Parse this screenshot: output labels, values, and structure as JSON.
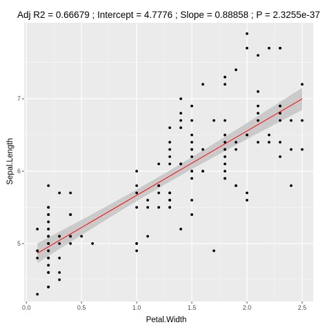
{
  "chart_data": {
    "type": "scatter",
    "title": "Adj R2 =  0.66679 ; Intercept = 4.7776 ; Slope = 0.88858 ; P = 2.3255e-37",
    "xlabel": "Petal.Width",
    "ylabel": "Sepal.Length",
    "xlim": [
      -0.02,
      2.6
    ],
    "ylim": [
      4.2,
      8.05
    ],
    "xticks": [
      0.0,
      0.5,
      1.0,
      1.5,
      2.0,
      2.5
    ],
    "xtick_labels": [
      "0.0",
      "0.5",
      "1.0",
      "1.5",
      "2.0",
      "2.5"
    ],
    "yticks": [
      5,
      6,
      7
    ],
    "ytick_labels": [
      "5",
      "6",
      "7"
    ],
    "grid": true,
    "background": "#ebebeb",
    "grid_color": "#ffffff",
    "point_color": "#000000",
    "fit": {
      "intercept": 4.7776,
      "slope": 0.88858,
      "color": "#ff0000",
      "ci_color": "#bfbfbf"
    },
    "series": [
      {
        "x": [
          0.2,
          0.2,
          0.2,
          0.2,
          0.2,
          0.4,
          0.3,
          0.2,
          0.2,
          0.1,
          0.2,
          0.2,
          0.1,
          0.1,
          0.2,
          0.4,
          0.4,
          0.3,
          0.3,
          0.3,
          0.2,
          0.4,
          0.2,
          0.5,
          0.2,
          0.2,
          0.4,
          0.2,
          0.2,
          0.2,
          0.2,
          0.4,
          0.1,
          0.2,
          0.2,
          0.2,
          0.2,
          0.1,
          0.2,
          0.2,
          0.3,
          0.3,
          0.2,
          0.6,
          0.4,
          0.3,
          0.2,
          0.2,
          0.2,
          0.2,
          1.4,
          1.5,
          1.5,
          1.3,
          1.5,
          1.3,
          1.6,
          1.0,
          1.3,
          1.4,
          1.0,
          1.5,
          1.0,
          1.4,
          1.3,
          1.4,
          1.5,
          1.0,
          1.5,
          1.1,
          1.8,
          1.3,
          1.5,
          1.2,
          1.3,
          1.4,
          1.4,
          1.7,
          1.5,
          1.0,
          1.1,
          1.0,
          1.2,
          1.6,
          1.5,
          1.6,
          1.5,
          1.3,
          1.3,
          1.3,
          1.2,
          1.4,
          1.2,
          1.0,
          1.3,
          1.2,
          1.3,
          1.3,
          1.1,
          1.3,
          2.5,
          1.9,
          2.1,
          1.8,
          2.2,
          2.1,
          1.7,
          1.8,
          1.8,
          2.5,
          2.0,
          1.9,
          2.1,
          2.0,
          2.4,
          2.3,
          1.8,
          2.2,
          2.3,
          1.5,
          2.3,
          2.0,
          2.0,
          1.8,
          2.1,
          1.8,
          1.8,
          1.8,
          2.1,
          1.6,
          1.9,
          2.0,
          2.2,
          1.5,
          1.4,
          2.3,
          2.4,
          1.8,
          1.8,
          2.1,
          2.4,
          2.3,
          1.9,
          2.3,
          2.5,
          2.3,
          1.9,
          2.0,
          2.3,
          1.8
        ],
        "y": [
          5.1,
          4.9,
          4.7,
          4.6,
          5.0,
          5.4,
          4.6,
          5.0,
          4.4,
          4.9,
          5.4,
          4.8,
          4.8,
          4.3,
          5.8,
          5.7,
          5.4,
          5.1,
          5.7,
          5.1,
          5.4,
          5.1,
          4.6,
          5.1,
          4.8,
          5.0,
          5.0,
          5.2,
          5.2,
          4.7,
          4.8,
          5.4,
          5.2,
          5.5,
          4.9,
          5.0,
          5.5,
          4.9,
          4.4,
          5.1,
          5.0,
          4.5,
          4.4,
          5.0,
          5.1,
          4.8,
          5.1,
          4.6,
          5.3,
          5.0,
          7.0,
          6.4,
          6.9,
          5.5,
          6.5,
          5.7,
          6.3,
          4.9,
          6.6,
          5.2,
          5.0,
          5.9,
          6.0,
          6.1,
          5.6,
          6.7,
          5.6,
          5.8,
          6.2,
          5.6,
          5.9,
          6.1,
          6.3,
          6.1,
          6.4,
          6.6,
          6.8,
          6.7,
          6.0,
          5.7,
          5.5,
          5.5,
          5.8,
          6.0,
          5.4,
          6.0,
          6.7,
          6.3,
          5.6,
          5.5,
          5.5,
          6.1,
          5.8,
          5.0,
          5.6,
          5.7,
          5.7,
          6.2,
          5.1,
          5.7,
          6.3,
          5.8,
          7.1,
          6.3,
          6.5,
          7.6,
          4.9,
          7.3,
          6.7,
          7.2,
          6.5,
          6.4,
          6.8,
          5.7,
          5.8,
          6.4,
          6.5,
          7.7,
          7.7,
          6.0,
          6.9,
          5.6,
          7.7,
          6.3,
          6.7,
          7.2,
          6.2,
          6.1,
          6.4,
          7.2,
          7.4,
          7.9,
          6.4,
          6.3,
          6.1,
          7.7,
          6.3,
          6.4,
          6.0,
          6.9,
          6.7,
          6.9,
          5.8,
          6.8,
          6.7,
          6.7,
          6.3,
          6.5,
          6.2,
          5.9
        ]
      }
    ]
  }
}
